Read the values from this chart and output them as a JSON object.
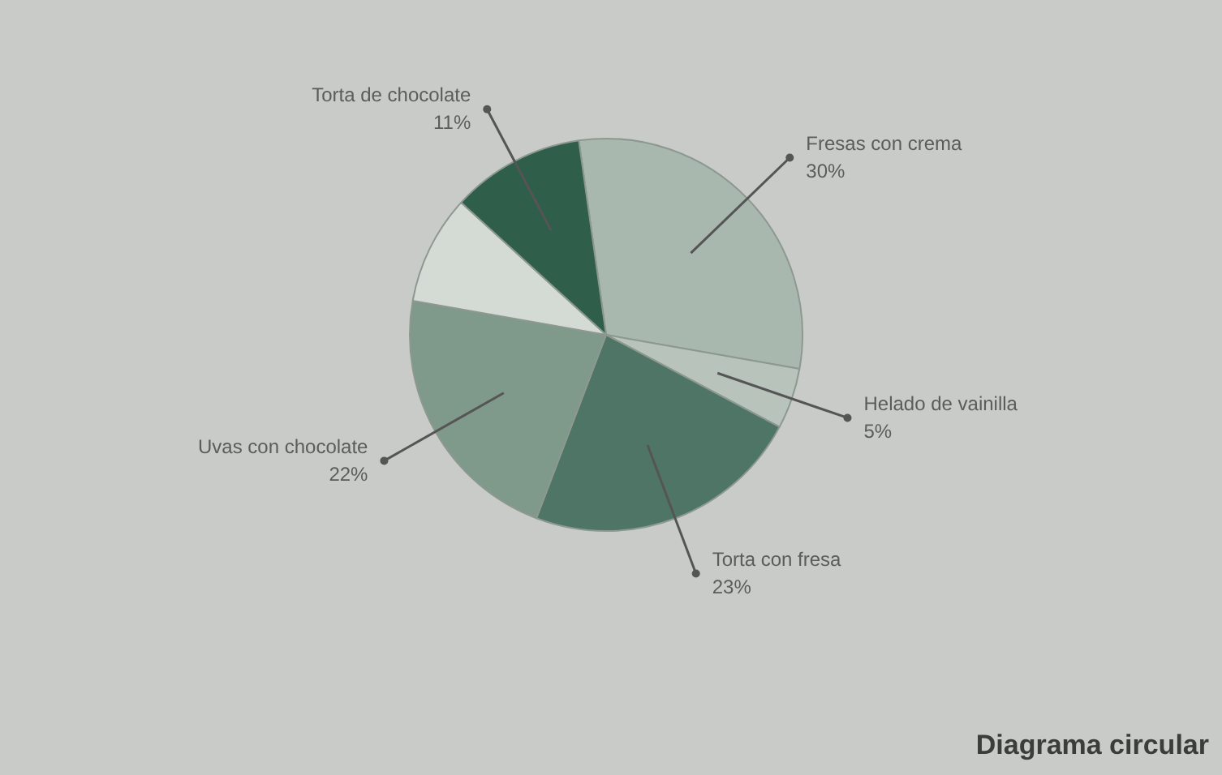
{
  "chart_data": {
    "type": "pie",
    "title": "Diagrama circular",
    "categories": [
      "Fresas con crema",
      "Helado de vainilla",
      "Torta con fresa",
      "Uvas con chocolate",
      null,
      "Torta de chocolate"
    ],
    "values": [
      30,
      5,
      23,
      22,
      9,
      11
    ],
    "colors": [
      "#a9b8ae",
      "#b7c3bb",
      "#4f7566",
      "#7f998a",
      "#d4dbd5",
      "#2f5e4a"
    ],
    "value_labels": [
      "30%",
      "5%",
      "23%",
      "22%",
      null,
      "11%"
    ],
    "legend": false
  }
}
